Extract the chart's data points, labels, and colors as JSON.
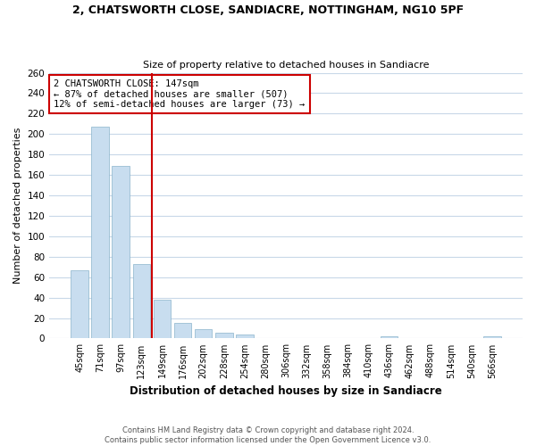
{
  "title": "2, CHATSWORTH CLOSE, SANDIACRE, NOTTINGHAM, NG10 5PF",
  "subtitle": "Size of property relative to detached houses in Sandiacre",
  "xlabel": "Distribution of detached houses by size in Sandiacre",
  "ylabel": "Number of detached properties",
  "bar_labels": [
    "45sqm",
    "71sqm",
    "97sqm",
    "123sqm",
    "149sqm",
    "176sqm",
    "202sqm",
    "228sqm",
    "254sqm",
    "280sqm",
    "306sqm",
    "332sqm",
    "358sqm",
    "384sqm",
    "410sqm",
    "436sqm",
    "462sqm",
    "488sqm",
    "514sqm",
    "540sqm",
    "566sqm"
  ],
  "bar_heights": [
    67,
    207,
    169,
    73,
    38,
    15,
    9,
    6,
    4,
    0,
    0,
    0,
    0,
    0,
    0,
    2,
    0,
    0,
    0,
    0,
    2
  ],
  "bar_color": "#c8ddef",
  "bar_edge_color": "#8ab4cc",
  "vline_x_index": 3.5,
  "vline_color": "#cc0000",
  "annotation_line1": "2 CHATSWORTH CLOSE: 147sqm",
  "annotation_line2": "← 87% of detached houses are smaller (507)",
  "annotation_line3": "12% of semi-detached houses are larger (73) →",
  "annotation_box_color": "#ffffff",
  "annotation_box_edge": "#cc0000",
  "ylim": [
    0,
    260
  ],
  "yticks": [
    0,
    20,
    40,
    60,
    80,
    100,
    120,
    140,
    160,
    180,
    200,
    220,
    240,
    260
  ],
  "footer_line1": "Contains HM Land Registry data © Crown copyright and database right 2024.",
  "footer_line2": "Contains public sector information licensed under the Open Government Licence v3.0.",
  "background_color": "#ffffff",
  "grid_color": "#c8d8e8"
}
